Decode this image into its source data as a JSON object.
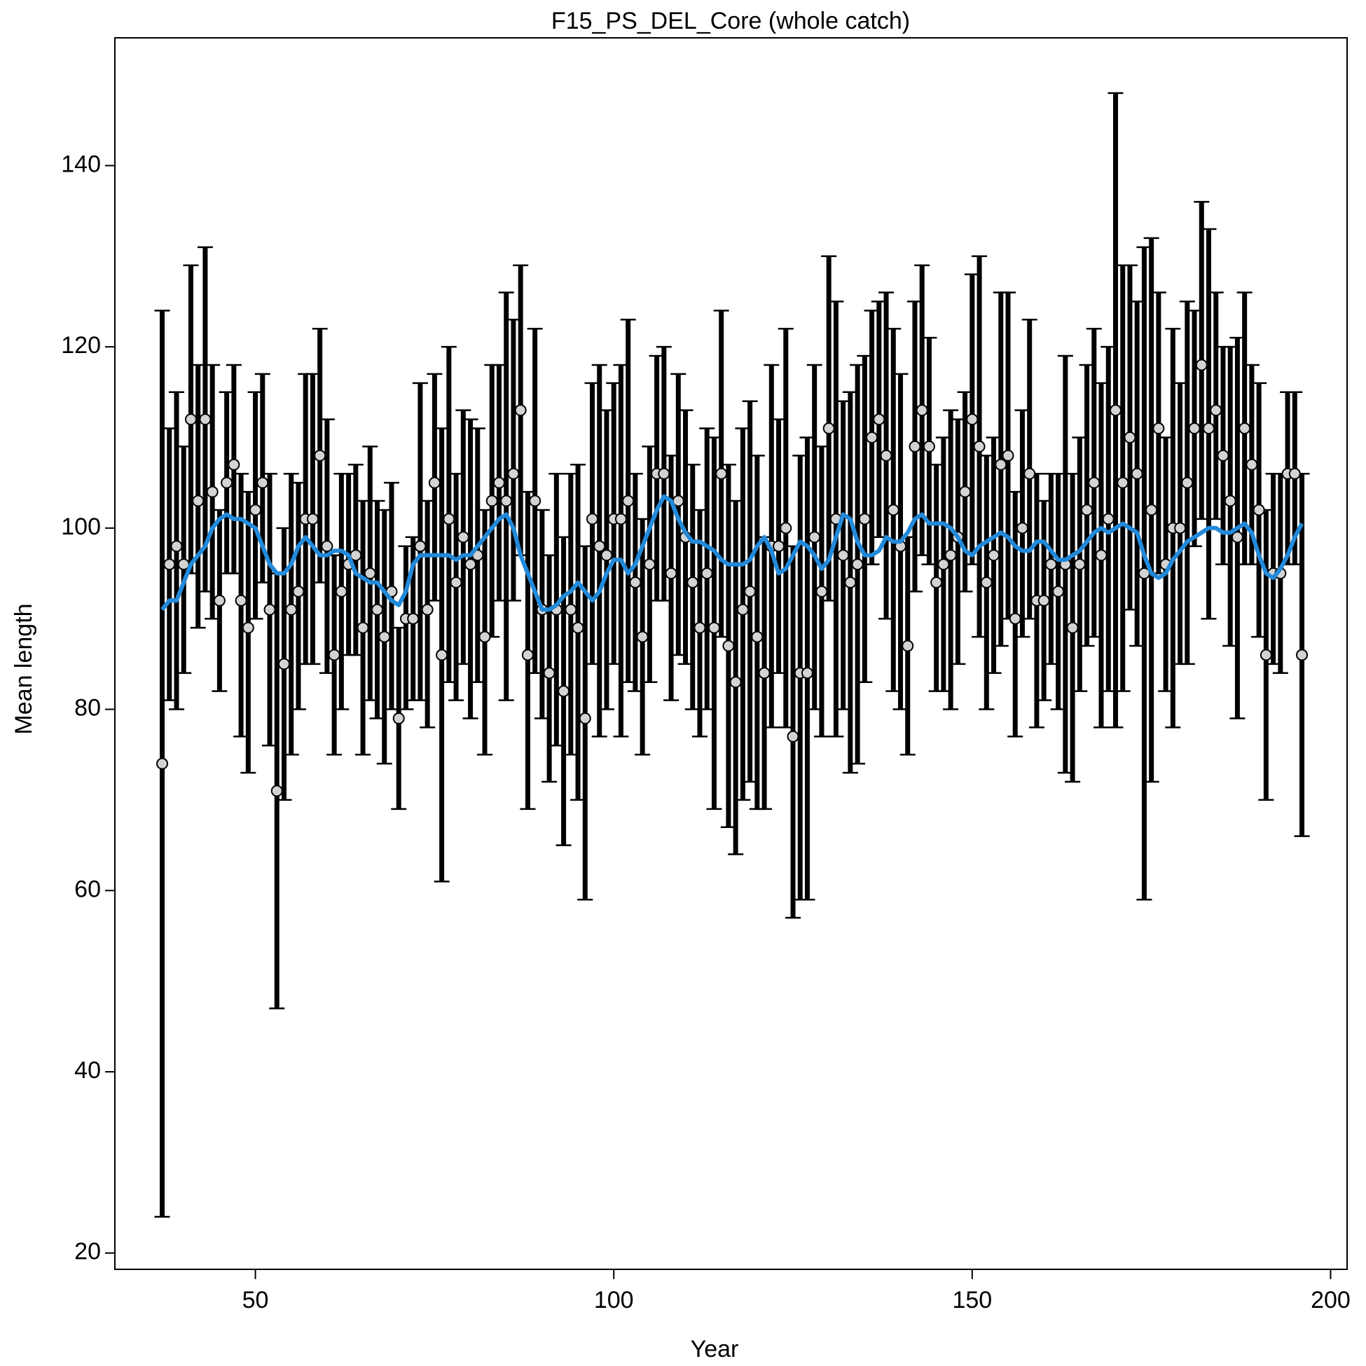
{
  "chart_data": {
    "type": "errorbar",
    "title": "F15_PS_DEL_Core (whole catch)",
    "x_label": "Year",
    "y_label": "Mean length",
    "xlim": [
      30.4,
      202.3
    ],
    "ylim": [
      18.2,
      154.1
    ],
    "xticks": [
      50,
      100,
      150,
      200
    ],
    "yticks": [
      20,
      40,
      60,
      80,
      100,
      120,
      140
    ],
    "bar_color": "#000000",
    "point_color": "#d3d3d3",
    "smooth_color": "#2389d9",
    "x": [
      37,
      38,
      39,
      40,
      41,
      42,
      43,
      44,
      45,
      46,
      47,
      48,
      49,
      50,
      51,
      52,
      53,
      54,
      55,
      56,
      57,
      58,
      59,
      60,
      61,
      62,
      63,
      64,
      65,
      66,
      67,
      68,
      69,
      70,
      71,
      72,
      73,
      74,
      75,
      76,
      77,
      78,
      79,
      80,
      81,
      82,
      83,
      84,
      85,
      86,
      87,
      88,
      89,
      90,
      91,
      92,
      93,
      94,
      95,
      96,
      97,
      98,
      99,
      100,
      101,
      102,
      103,
      104,
      105,
      106,
      107,
      108,
      109,
      110,
      111,
      112,
      113,
      114,
      115,
      116,
      117,
      118,
      119,
      120,
      121,
      122,
      123,
      124,
      125,
      126,
      127,
      128,
      129,
      130,
      131,
      132,
      133,
      134,
      135,
      136,
      137,
      138,
      139,
      140,
      141,
      142,
      143,
      144,
      145,
      146,
      147,
      148,
      149,
      150,
      151,
      152,
      153,
      154,
      155,
      156,
      157,
      158,
      159,
      160,
      161,
      162,
      163,
      164,
      165,
      166,
      167,
      168,
      169,
      170,
      171,
      172,
      173,
      174,
      175,
      176,
      177,
      178,
      179,
      180,
      181,
      182,
      183,
      184,
      185,
      186,
      187,
      188,
      189,
      190,
      191,
      192,
      193,
      194,
      195,
      196
    ],
    "values": [
      74,
      96,
      98,
      96,
      112,
      103,
      112,
      104,
      92,
      105,
      107,
      92,
      89,
      102,
      105,
      91,
      71,
      85,
      91,
      93,
      101,
      101,
      108,
      98,
      86,
      93,
      96,
      97,
      89,
      95,
      91,
      88,
      93,
      79,
      90,
      90,
      98,
      91,
      105,
      86,
      101,
      94,
      99,
      96,
      97,
      88,
      103,
      105,
      103,
      106,
      113,
      86,
      103,
      91,
      84,
      91,
      82,
      91,
      89,
      79,
      101,
      98,
      97,
      101,
      101,
      103,
      94,
      88,
      96,
      106,
      106,
      95,
      103,
      99,
      94,
      89,
      95,
      89,
      106,
      87,
      83,
      91,
      93,
      88,
      84,
      98,
      98,
      100,
      77,
      84,
      84,
      99,
      93,
      111,
      101,
      97,
      94,
      96,
      101,
      110,
      112,
      108,
      102,
      98,
      87,
      109,
      113,
      109,
      94,
      96,
      97,
      99,
      104,
      112,
      109,
      94,
      97,
      107,
      108,
      90,
      100,
      106,
      92,
      92,
      96,
      93,
      96,
      89,
      96,
      102,
      105,
      97,
      101,
      113,
      105,
      110,
      106,
      95,
      102,
      111,
      96,
      100,
      100,
      105,
      111,
      118,
      111,
      113,
      108,
      103,
      99,
      111,
      107,
      102,
      86,
      95,
      95,
      106,
      106,
      86
    ],
    "lower": [
      24,
      81,
      80,
      84,
      95,
      89,
      93,
      90,
      82,
      95,
      95,
      77,
      73,
      90,
      94,
      76,
      47,
      70,
      75,
      80,
      85,
      85,
      94,
      84,
      75,
      80,
      86,
      86,
      75,
      81,
      79,
      74,
      80,
      69,
      80,
      81,
      81,
      78,
      92,
      61,
      83,
      81,
      85,
      79,
      83,
      75,
      88,
      92,
      81,
      92,
      97,
      69,
      84,
      79,
      72,
      76,
      65,
      75,
      70,
      59,
      85,
      77,
      80,
      85,
      77,
      83,
      82,
      75,
      83,
      92,
      92,
      81,
      86,
      85,
      80,
      77,
      80,
      69,
      88,
      67,
      64,
      70,
      72,
      69,
      69,
      78,
      84,
      78,
      57,
      59,
      59,
      80,
      77,
      92,
      77,
      80,
      73,
      74,
      83,
      96,
      99,
      90,
      82,
      80,
      75,
      93,
      97,
      96,
      82,
      82,
      80,
      85,
      93,
      96,
      88,
      80,
      84,
      87,
      90,
      77,
      88,
      90,
      78,
      81,
      85,
      80,
      73,
      72,
      82,
      87,
      88,
      78,
      82,
      78,
      82,
      91,
      87,
      59,
      72,
      95,
      82,
      78,
      85,
      85,
      98,
      101,
      90,
      101,
      96,
      87,
      79,
      96,
      96,
      88,
      70,
      85,
      84,
      96,
      96,
      66
    ],
    "upper": [
      124,
      111,
      115,
      109,
      129,
      118,
      131,
      118,
      102,
      115,
      118,
      106,
      104,
      115,
      117,
      106,
      95,
      100,
      106,
      105,
      117,
      117,
      122,
      112,
      97,
      106,
      106,
      107,
      103,
      109,
      103,
      102,
      105,
      89,
      98,
      99,
      116,
      103,
      117,
      111,
      120,
      106,
      113,
      112,
      111,
      102,
      118,
      118,
      126,
      123,
      129,
      104,
      122,
      102,
      97,
      106,
      99,
      106,
      107,
      98,
      116,
      118,
      113,
      116,
      118,
      123,
      106,
      101,
      109,
      119,
      120,
      108,
      117,
      113,
      107,
      102,
      111,
      110,
      124,
      107,
      103,
      111,
      114,
      108,
      99,
      118,
      112,
      122,
      98,
      108,
      110,
      118,
      109,
      130,
      125,
      114,
      115,
      118,
      119,
      124,
      125,
      126,
      122,
      117,
      99,
      125,
      129,
      121,
      107,
      110,
      113,
      112,
      115,
      128,
      130,
      108,
      110,
      126,
      126,
      104,
      113,
      123,
      106,
      103,
      106,
      106,
      119,
      106,
      110,
      118,
      122,
      116,
      120,
      148,
      129,
      129,
      125,
      131,
      132,
      126,
      110,
      122,
      116,
      125,
      124,
      136,
      133,
      126,
      120,
      120,
      121,
      126,
      118,
      116,
      102,
      106,
      106,
      115,
      115,
      106
    ],
    "smooth": [
      91,
      92,
      92,
      94,
      96,
      97,
      98,
      100,
      101,
      101.5,
      101,
      101,
      100.5,
      100,
      98,
      96,
      95,
      95,
      96,
      98,
      99,
      98,
      97,
      97,
      97.5,
      97.5,
      97,
      95,
      94.5,
      94,
      94,
      93,
      92,
      91.5,
      93,
      96,
      97,
      97,
      97,
      97,
      97,
      96.5,
      97,
      97,
      98,
      99,
      100,
      101,
      101.5,
      100,
      97,
      95,
      93,
      91,
      91,
      91.5,
      92.5,
      93,
      94,
      93,
      92,
      93,
      95,
      96.5,
      96.5,
      95,
      96,
      98,
      100,
      102,
      103.5,
      103,
      101,
      99.5,
      98.5,
      98.5,
      98,
      97.5,
      96.5,
      96,
      96,
      96,
      96.5,
      98,
      99,
      97.5,
      95,
      95.5,
      97,
      98.5,
      98,
      97,
      95.5,
      96.5,
      99,
      101.5,
      101,
      98.5,
      97,
      97,
      97.5,
      99,
      98.5,
      98.5,
      99.5,
      101,
      101.5,
      100.5,
      100.5,
      100.5,
      100,
      99,
      97.5,
      97,
      98,
      98.5,
      99,
      99.5,
      99,
      98,
      97.5,
      97.5,
      98.5,
      98.5,
      97.5,
      96.5,
      96.5,
      97,
      97.5,
      98.5,
      99.5,
      100,
      99.5,
      100,
      100.5,
      100,
      99.5,
      97,
      95,
      94.5,
      95,
      96.5,
      97.5,
      98.5,
      99,
      99.5,
      100,
      100,
      99.5,
      99.5,
      100,
      100.5,
      99.5,
      97,
      95,
      94.5,
      95.5,
      97,
      99,
      100.5
    ]
  }
}
